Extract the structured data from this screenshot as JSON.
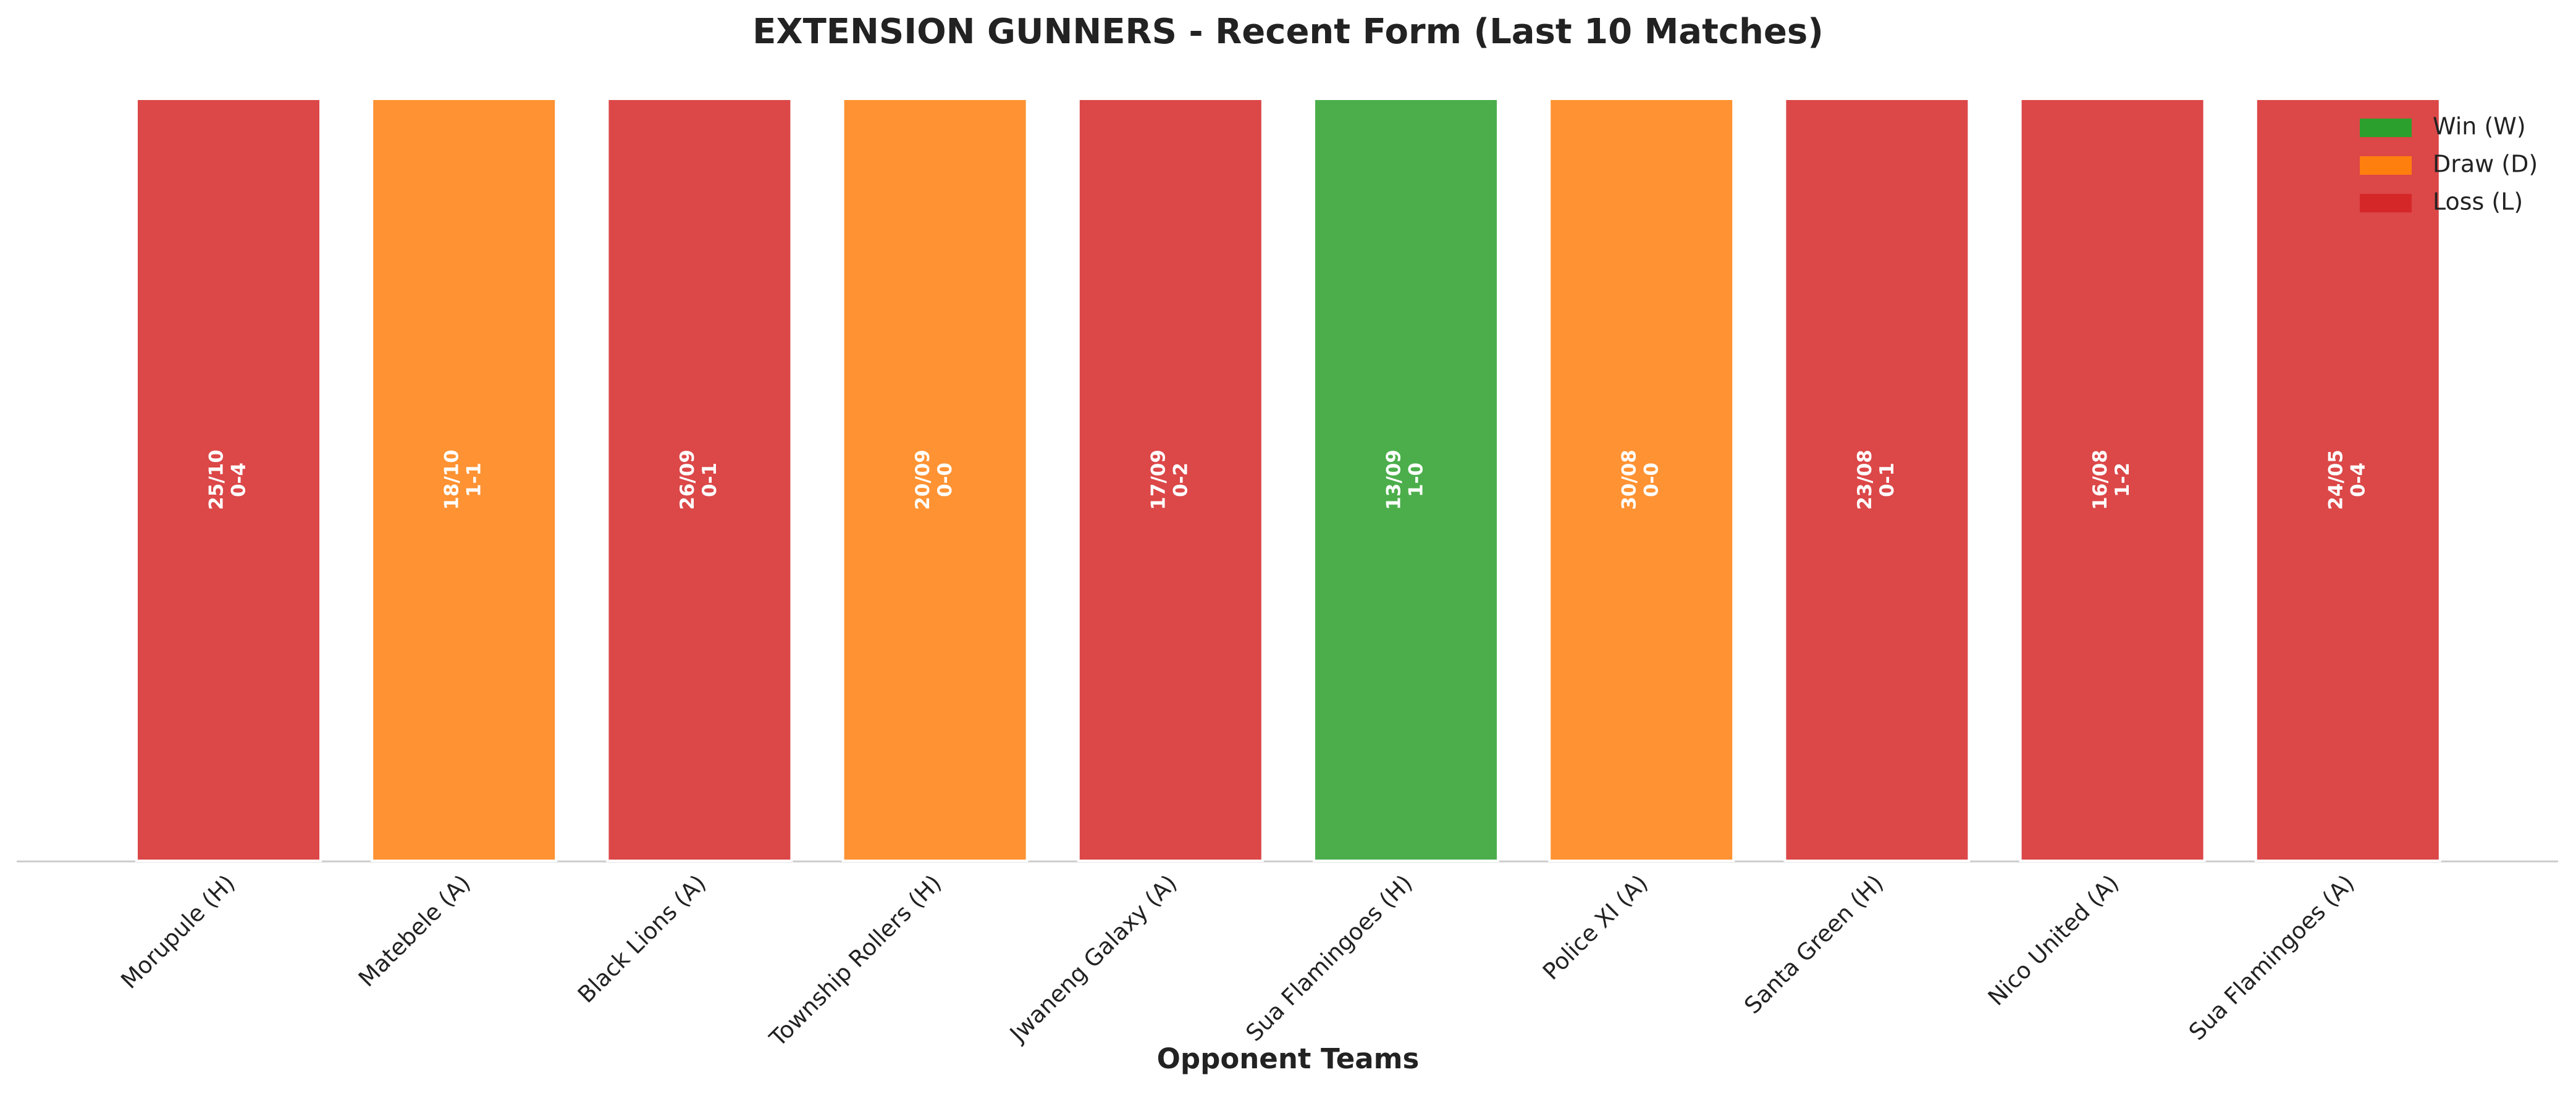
{
  "chart_data": {
    "type": "bar",
    "title": "EXTENSION GUNNERS - Recent Form (Last 10 Matches)",
    "x_label": "Opponent Teams",
    "categories": [
      "Morupule (H)",
      "Matebele (A)",
      "Black Lions (A)",
      "Township Rollers (H)",
      "Jwaneng Galaxy (A)",
      "Sua Flamingoes (H)",
      "Police XI (A)",
      "Santa Green (H)",
      "Nico United (A)",
      "Sua Flamingoes (A)"
    ],
    "dates": [
      "25/10",
      "18/10",
      "26/09",
      "20/09",
      "17/09",
      "13/09",
      "30/08",
      "23/08",
      "16/08",
      "24/05"
    ],
    "scores": [
      "0-4",
      "1-1",
      "0-1",
      "0-0",
      "0-2",
      "1-0",
      "0-0",
      "0-1",
      "1-2",
      "0-4"
    ],
    "series": [
      {
        "name": "Win (W)",
        "color": "#2ca02c",
        "values": [
          null,
          null,
          null,
          null,
          null,
          1,
          null,
          null,
          null,
          null
        ]
      },
      {
        "name": "Draw (D)",
        "color": "#ff7f0e",
        "values": [
          null,
          1,
          null,
          1,
          null,
          null,
          1,
          null,
          null,
          null
        ]
      },
      {
        "name": "Loss (L)",
        "color": "#d62728",
        "values": [
          1,
          null,
          1,
          null,
          1,
          null,
          null,
          1,
          1,
          1
        ]
      }
    ],
    "ylim": [
      0,
      1
    ],
    "legend": "upper right"
  }
}
